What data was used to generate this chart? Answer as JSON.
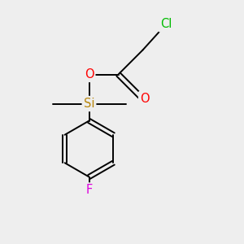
{
  "background_color": "#eeeeee",
  "bond_color": "#000000",
  "cl_color": "#00bb00",
  "o_color": "#ff0000",
  "si_color": "#b8860b",
  "f_color": "#dd00dd",
  "cl_label": "Cl",
  "o_label": "O",
  "si_label": "Si",
  "f_label": "F",
  "lw": 1.4,
  "font_size": 10.5
}
